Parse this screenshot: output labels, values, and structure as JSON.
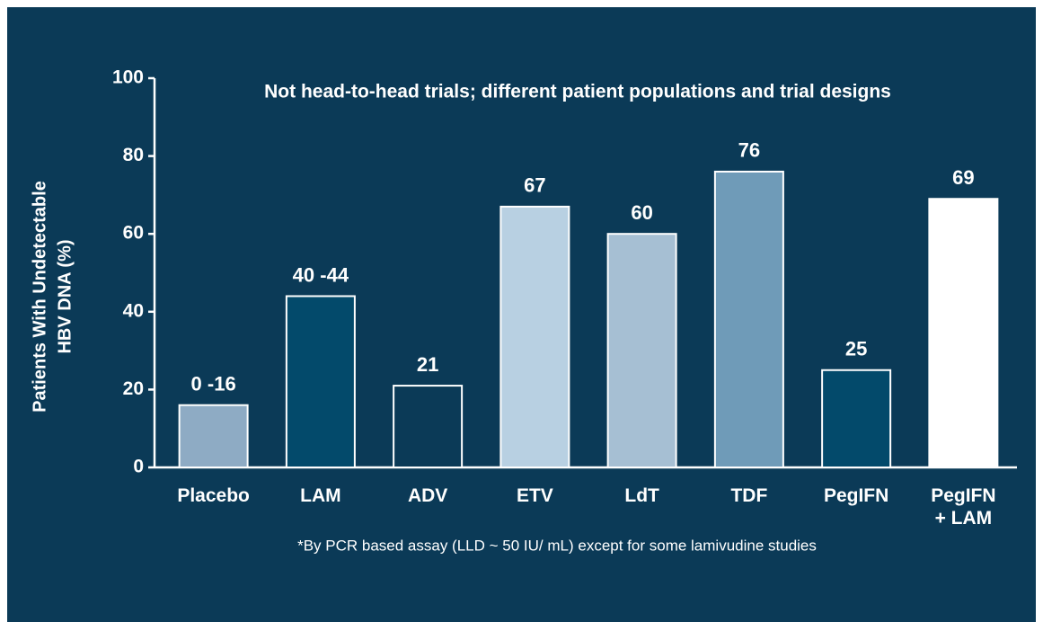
{
  "chart_data": {
    "type": "bar",
    "title": "Not head-to-head trials; different patient populations and trial designs",
    "y_label": [
      "Patients With Undetectable",
      "HBV DNA (%)"
    ],
    "footnote": "*By PCR based assay (LLD ~ 50 IU/ mL) except for some lamivudine studies",
    "categories": [
      "Placebo",
      "LAM",
      "ADV",
      "ETV",
      "LdT",
      "TDF",
      "PegIFN",
      "PegIFN\n+ LAM"
    ],
    "values": [
      16,
      44,
      21,
      67,
      60,
      76,
      25,
      69
    ],
    "value_labels": [
      "0 -16",
      "40 -44",
      "21",
      "67",
      "60",
      "76",
      "25",
      "69"
    ],
    "colors": [
      "#8eabc4",
      "#034a6b",
      "#0b3a57",
      "#b8d0e2",
      "#a6bfd3",
      "#6f9bb8",
      "#034a6b",
      "#ffffff"
    ],
    "ylim": [
      0,
      100
    ],
    "yticks": [
      0,
      20,
      40,
      60,
      80,
      100
    ]
  }
}
